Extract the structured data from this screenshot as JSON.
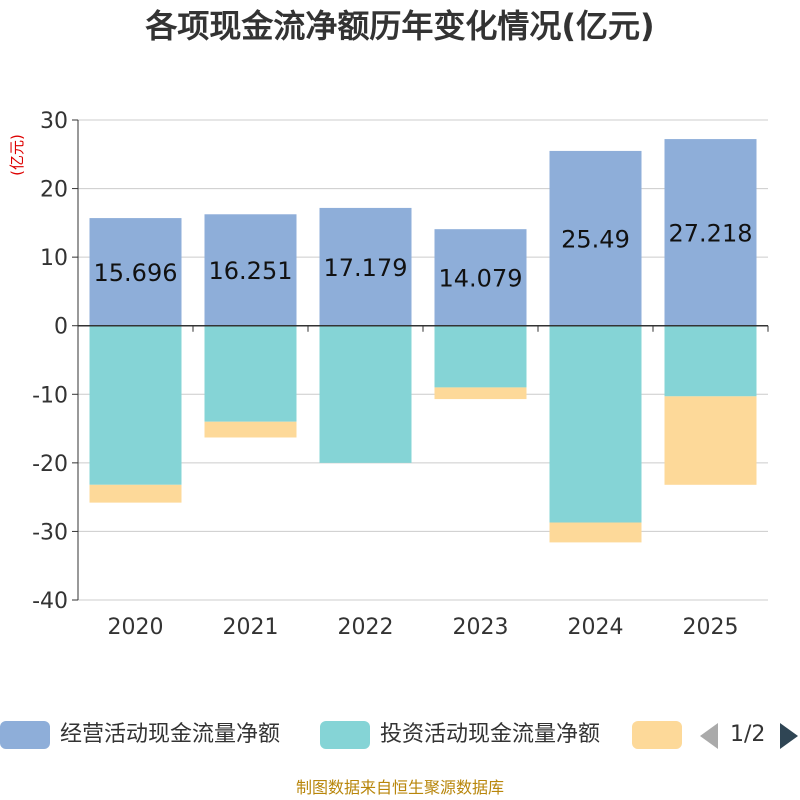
{
  "chart_data": {
    "type": "bar",
    "stacked": true,
    "title": "各项现金流净额历年变化情况(亿元)",
    "ylabel": "(亿元)",
    "xlabel": "",
    "categories": [
      "2020",
      "2021",
      "2022",
      "2023",
      "2024",
      "2025"
    ],
    "ylim": [
      -40,
      30
    ],
    "yticks": [
      30,
      20,
      10,
      0,
      -10,
      -20,
      -30,
      -40
    ],
    "grid": true,
    "series": [
      {
        "name": "经营活动现金流量净额",
        "color": "#8eaed9",
        "values": [
          15.696,
          16.251,
          17.179,
          14.079,
          25.49,
          27.218
        ],
        "labels_shown": true
      },
      {
        "name": "投资活动现金流量净额",
        "color": "#85d4d6",
        "values": [
          -23.2,
          -14.0,
          -20.0,
          -9.0,
          -28.7,
          -10.3
        ],
        "labels_shown": false
      },
      {
        "name": "",
        "color": "#fdd999",
        "values": [
          -2.6,
          -2.3,
          0,
          -1.7,
          -2.9,
          -12.9
        ],
        "labels_shown": false
      }
    ],
    "legend_position": "bottom"
  },
  "legend": {
    "page_indicator": "1/2"
  },
  "source": "制图数据来自恒生聚源数据库"
}
